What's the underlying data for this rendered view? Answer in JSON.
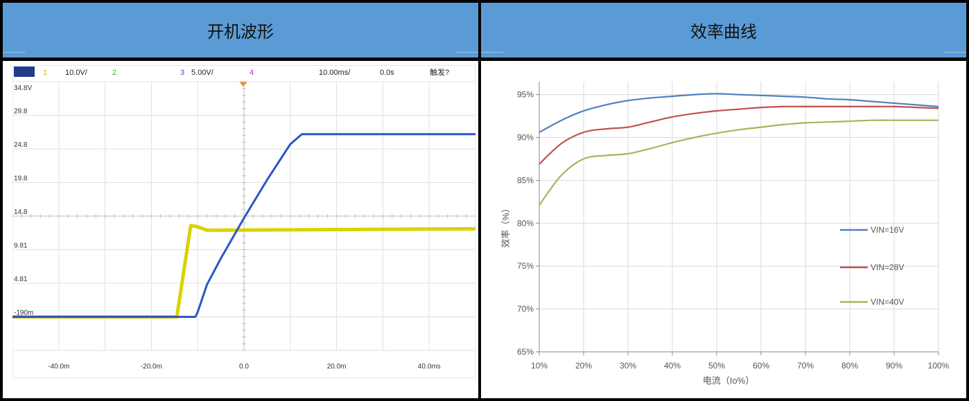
{
  "headers": {
    "left": "开机波形",
    "right": "效率曲线"
  },
  "colors": {
    "header_bg": "#5b9bd5",
    "scope_bg": "#ffffff",
    "ch1_yellow": "#d9d400",
    "ch3_blue": "#2a56c6",
    "trigger_orange": "#e88a1a",
    "series_16": "#4f81bd",
    "series_28": "#c0504d",
    "series_40": "#9bbb59"
  },
  "scope": {
    "toolbar": {
      "ch1": "1",
      "ch1_scale": "10.0V/",
      "ch2": "2",
      "ch3": "3",
      "ch3_scale": "5.00V/",
      "ch4": "4",
      "timebase": "10.00ms/",
      "delay": "0.0s",
      "trigger_status": "触发?"
    },
    "y_ticks": [
      "34.8V",
      "29.8",
      "24.8",
      "19.8",
      "14.8",
      "9.81",
      "4.81",
      "-190m"
    ],
    "x_ticks": [
      "-40.0m",
      "-20.0m",
      "0.0",
      "20.0m",
      "40.0ms"
    ],
    "chart_data": {
      "type": "line",
      "x_unit": "ms",
      "y_unit": "V",
      "x_range": [
        -50,
        50
      ],
      "y_range": [
        -5.2,
        34.8
      ],
      "series": [
        {
          "name": "3",
          "color": "#2a56c6",
          "points": [
            [
              -50,
              -0.2
            ],
            [
              -10.5,
              -0.2
            ],
            [
              -10,
              0.5
            ],
            [
              -8,
              4.6
            ],
            [
              -5,
              8.5
            ],
            [
              0,
              14.5
            ],
            [
              5,
              20.2
            ],
            [
              10,
              25.5
            ],
            [
              12.5,
              27.0
            ],
            [
              50,
              27.0
            ]
          ]
        },
        {
          "name": "1",
          "color": "#d9d400",
          "points": [
            [
              -50,
              -0.2
            ],
            [
              -14.5,
              -0.2
            ],
            [
              -11.5,
              13.4
            ],
            [
              -10,
              13.2
            ],
            [
              -8,
              12.7
            ],
            [
              50,
              12.9
            ]
          ]
        }
      ]
    }
  },
  "efficiency": {
    "chart_data": {
      "type": "line",
      "title": "",
      "xlabel": "电流（Io%）",
      "ylabel": "效率（%）",
      "categories": [
        "10%",
        "20%",
        "30%",
        "40%",
        "50%",
        "60%",
        "70%",
        "80%",
        "90%",
        "100%"
      ],
      "x": [
        10,
        15,
        20,
        25,
        30,
        35,
        40,
        45,
        50,
        55,
        60,
        65,
        70,
        75,
        80,
        85,
        90,
        95,
        100
      ],
      "y_ticks": [
        "95%",
        "90%",
        "85%",
        "80%",
        "75%",
        "70%",
        "65%"
      ],
      "ylim": [
        65,
        96.5
      ],
      "grid": true,
      "legend_position": "right",
      "series": [
        {
          "name": "VIN=16V",
          "color": "#4f81bd",
          "values": [
            90.6,
            92.0,
            93.1,
            93.8,
            94.3,
            94.6,
            94.8,
            95.0,
            95.1,
            95.0,
            94.9,
            94.8,
            94.7,
            94.5,
            94.4,
            94.2,
            94.0,
            93.8,
            93.6
          ]
        },
        {
          "name": "VIN=28V",
          "color": "#c0504d",
          "values": [
            86.9,
            89.3,
            90.6,
            91.0,
            91.2,
            91.8,
            92.4,
            92.8,
            93.1,
            93.3,
            93.5,
            93.6,
            93.6,
            93.6,
            93.6,
            93.6,
            93.6,
            93.5,
            93.4
          ]
        },
        {
          "name": "VIN=40V",
          "color": "#9bbb59",
          "values": [
            82.1,
            85.6,
            87.5,
            87.9,
            88.1,
            88.7,
            89.4,
            90.0,
            90.5,
            90.9,
            91.2,
            91.5,
            91.7,
            91.8,
            91.9,
            92.0,
            92.0,
            92.0,
            92.0
          ]
        }
      ]
    }
  }
}
